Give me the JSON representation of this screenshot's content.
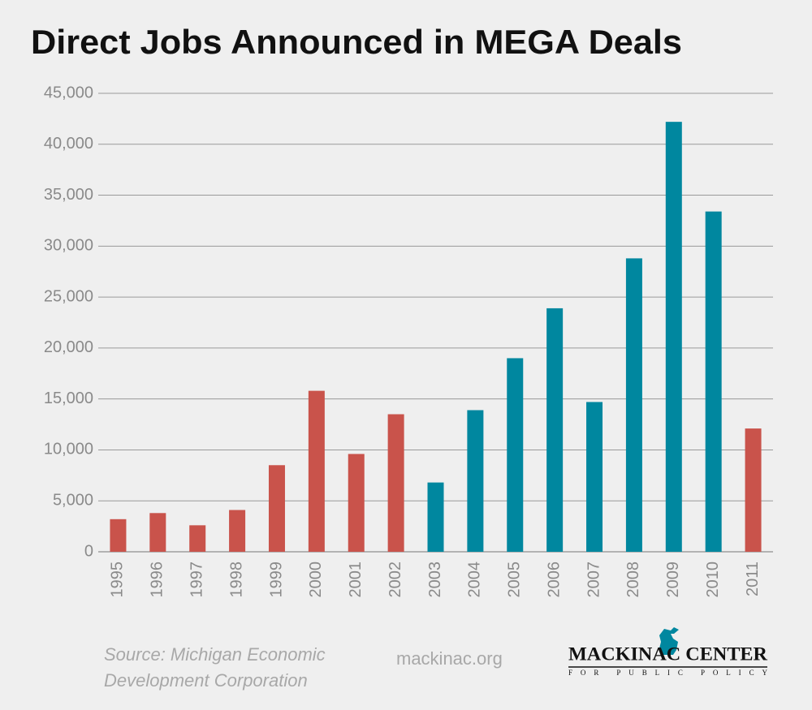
{
  "chart_data": {
    "type": "bar",
    "title": "Direct Jobs Announced in MEGA Deals",
    "categories": [
      "1995",
      "1996",
      "1997",
      "1998",
      "1999",
      "2000",
      "2001",
      "2002",
      "2003",
      "2004",
      "2005",
      "2006",
      "2007",
      "2008",
      "2009",
      "2010",
      "2011"
    ],
    "values": [
      3200,
      3800,
      2600,
      4100,
      8500,
      15800,
      9600,
      13500,
      6800,
      13900,
      19000,
      23900,
      14700,
      28800,
      42200,
      33400,
      12100
    ],
    "colors": [
      "#c9534b",
      "#c9534b",
      "#c9534b",
      "#c9534b",
      "#c9534b",
      "#c9534b",
      "#c9534b",
      "#c9534b",
      "#00879f",
      "#00879f",
      "#00879f",
      "#00879f",
      "#00879f",
      "#00879f",
      "#00879f",
      "#00879f",
      "#c9534b"
    ],
    "ylim": [
      0,
      45000
    ],
    "yticks": [
      0,
      {
        "value": 5000,
        "label": "5,000"
      },
      {
        "value": 10000,
        "label": "10,000"
      },
      {
        "value": 15000,
        "label": "15,000"
      },
      {
        "value": 20000,
        "label": "20,000"
      },
      {
        "value": 25000,
        "label": "25,000"
      },
      {
        "value": 30000,
        "label": "30,000"
      },
      {
        "value": 35000,
        "label": "35,000"
      },
      {
        "value": 40000,
        "label": "40,000"
      },
      {
        "value": 45000,
        "label": "45,000"
      }
    ],
    "grid": true,
    "source": [
      "Source: Michigan Economic",
      "Development Corporation"
    ]
  },
  "footer": {
    "website": "mackinac.org",
    "logo_name": "MACKINAC CENTER",
    "logo_tagline": "FOR PUBLIC POLICY"
  }
}
